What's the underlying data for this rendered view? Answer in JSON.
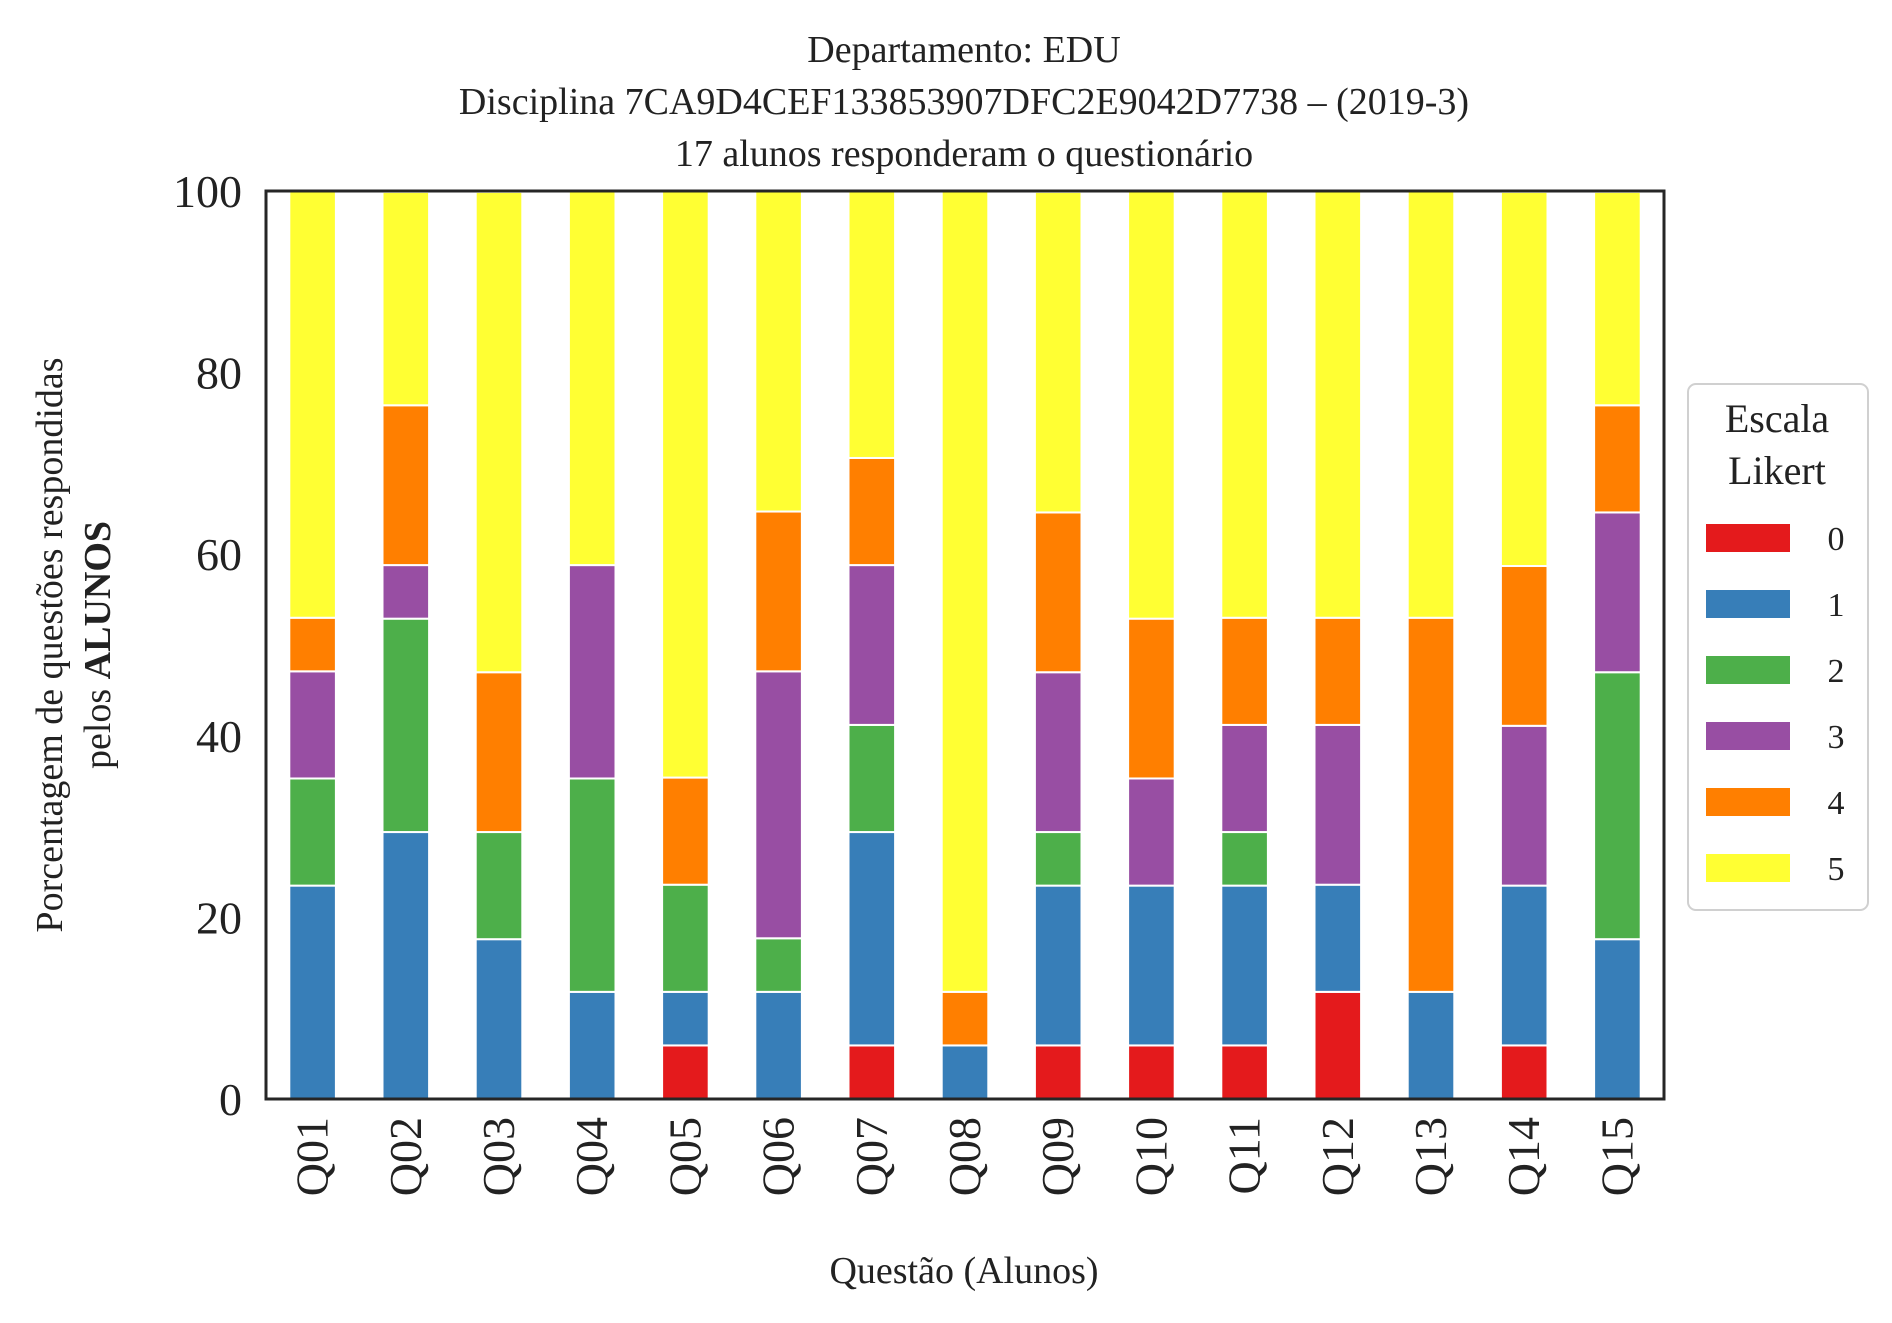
{
  "chart_data": {
    "type": "bar",
    "stacked": true,
    "title_lines": [
      "Departamento: EDU",
      "Disciplina 7CA9D4CEF133853907DFC2E9042D7738 – (2019-3)",
      "17 alunos responderam o questionário"
    ],
    "xlabel": "Questão (Alunos)",
    "ylabel_line1": "Porcentagem de questões respondidas",
    "ylabel_line2_prefix": "pelos ",
    "ylabel_line2_bold": "ALUNOS",
    "ylim": [
      0,
      100
    ],
    "yticks": [
      "0",
      "20",
      "40",
      "60",
      "80",
      "100"
    ],
    "grid": false,
    "legend": {
      "title_lines": [
        "Escala",
        "Likert"
      ],
      "placement": "right-center"
    },
    "categories": [
      "Q01",
      "Q02",
      "Q03",
      "Q04",
      "Q05",
      "Q06",
      "Q07",
      "Q08",
      "Q09",
      "Q10",
      "Q11",
      "Q12",
      "Q13",
      "Q14",
      "Q15"
    ],
    "series": [
      {
        "name": "0",
        "color": "#e41a1c",
        "values": [
          0,
          0,
          0,
          0,
          5.9,
          0,
          5.9,
          0,
          5.9,
          5.9,
          5.9,
          11.8,
          0,
          5.9,
          0
        ]
      },
      {
        "name": "1",
        "color": "#377eb8",
        "values": [
          23.5,
          29.4,
          17.6,
          11.8,
          5.9,
          11.8,
          23.5,
          5.9,
          17.6,
          17.6,
          17.6,
          11.8,
          11.8,
          17.6,
          17.6
        ]
      },
      {
        "name": "2",
        "color": "#4daf4a",
        "values": [
          11.8,
          23.5,
          11.8,
          23.5,
          11.8,
          5.9,
          11.8,
          0,
          5.9,
          0,
          5.9,
          0,
          0,
          0,
          29.4
        ]
      },
      {
        "name": "3",
        "color": "#984ea3",
        "values": [
          11.8,
          5.9,
          0,
          23.5,
          0,
          29.4,
          17.6,
          0,
          17.6,
          11.8,
          11.8,
          17.6,
          0,
          17.6,
          17.6
        ]
      },
      {
        "name": "4",
        "color": "#ff7f00",
        "values": [
          5.9,
          17.6,
          17.6,
          0,
          11.8,
          17.6,
          11.8,
          5.9,
          17.6,
          17.6,
          11.8,
          11.8,
          41.2,
          17.6,
          11.8
        ]
      },
      {
        "name": "5",
        "color": "#ffff33",
        "values": [
          47.1,
          23.5,
          52.9,
          41.2,
          64.7,
          35.3,
          29.4,
          88.2,
          35.3,
          47.1,
          47.1,
          47.1,
          47.1,
          41.2,
          23.5
        ]
      }
    ]
  }
}
